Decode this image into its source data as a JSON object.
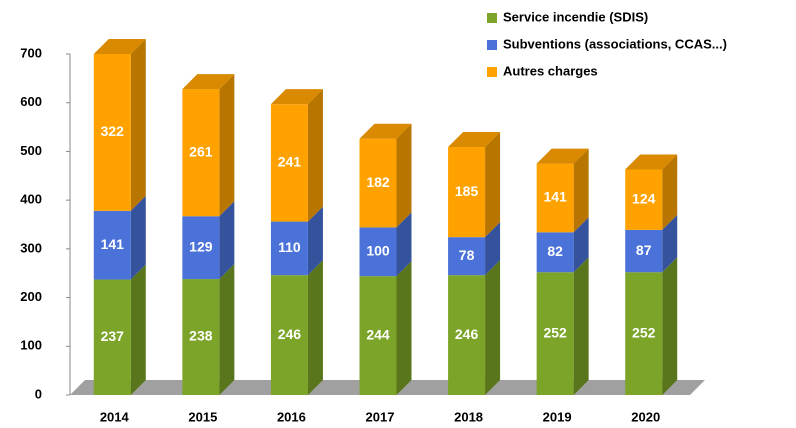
{
  "chart_data": {
    "type": "bar",
    "stacked": true,
    "three_d": true,
    "categories": [
      "2014",
      "2015",
      "2016",
      "2017",
      "2018",
      "2019",
      "2020"
    ],
    "series": [
      {
        "name": "Service incendie (SDIS)",
        "color": "#7ba428",
        "values": [
          237,
          238,
          246,
          244,
          246,
          252,
          252
        ]
      },
      {
        "name": "Subventions (associations, CCAS...)",
        "color": "#4a72d8",
        "values": [
          141,
          129,
          110,
          100,
          78,
          82,
          87
        ]
      },
      {
        "name": "Autres charges",
        "color": "#ffa200",
        "values": [
          322,
          261,
          241,
          182,
          185,
          141,
          124
        ]
      }
    ],
    "ylim": [
      0,
      700
    ],
    "yticks": [
      0,
      100,
      200,
      300,
      400,
      500,
      600,
      700
    ],
    "legend": "top-right"
  }
}
